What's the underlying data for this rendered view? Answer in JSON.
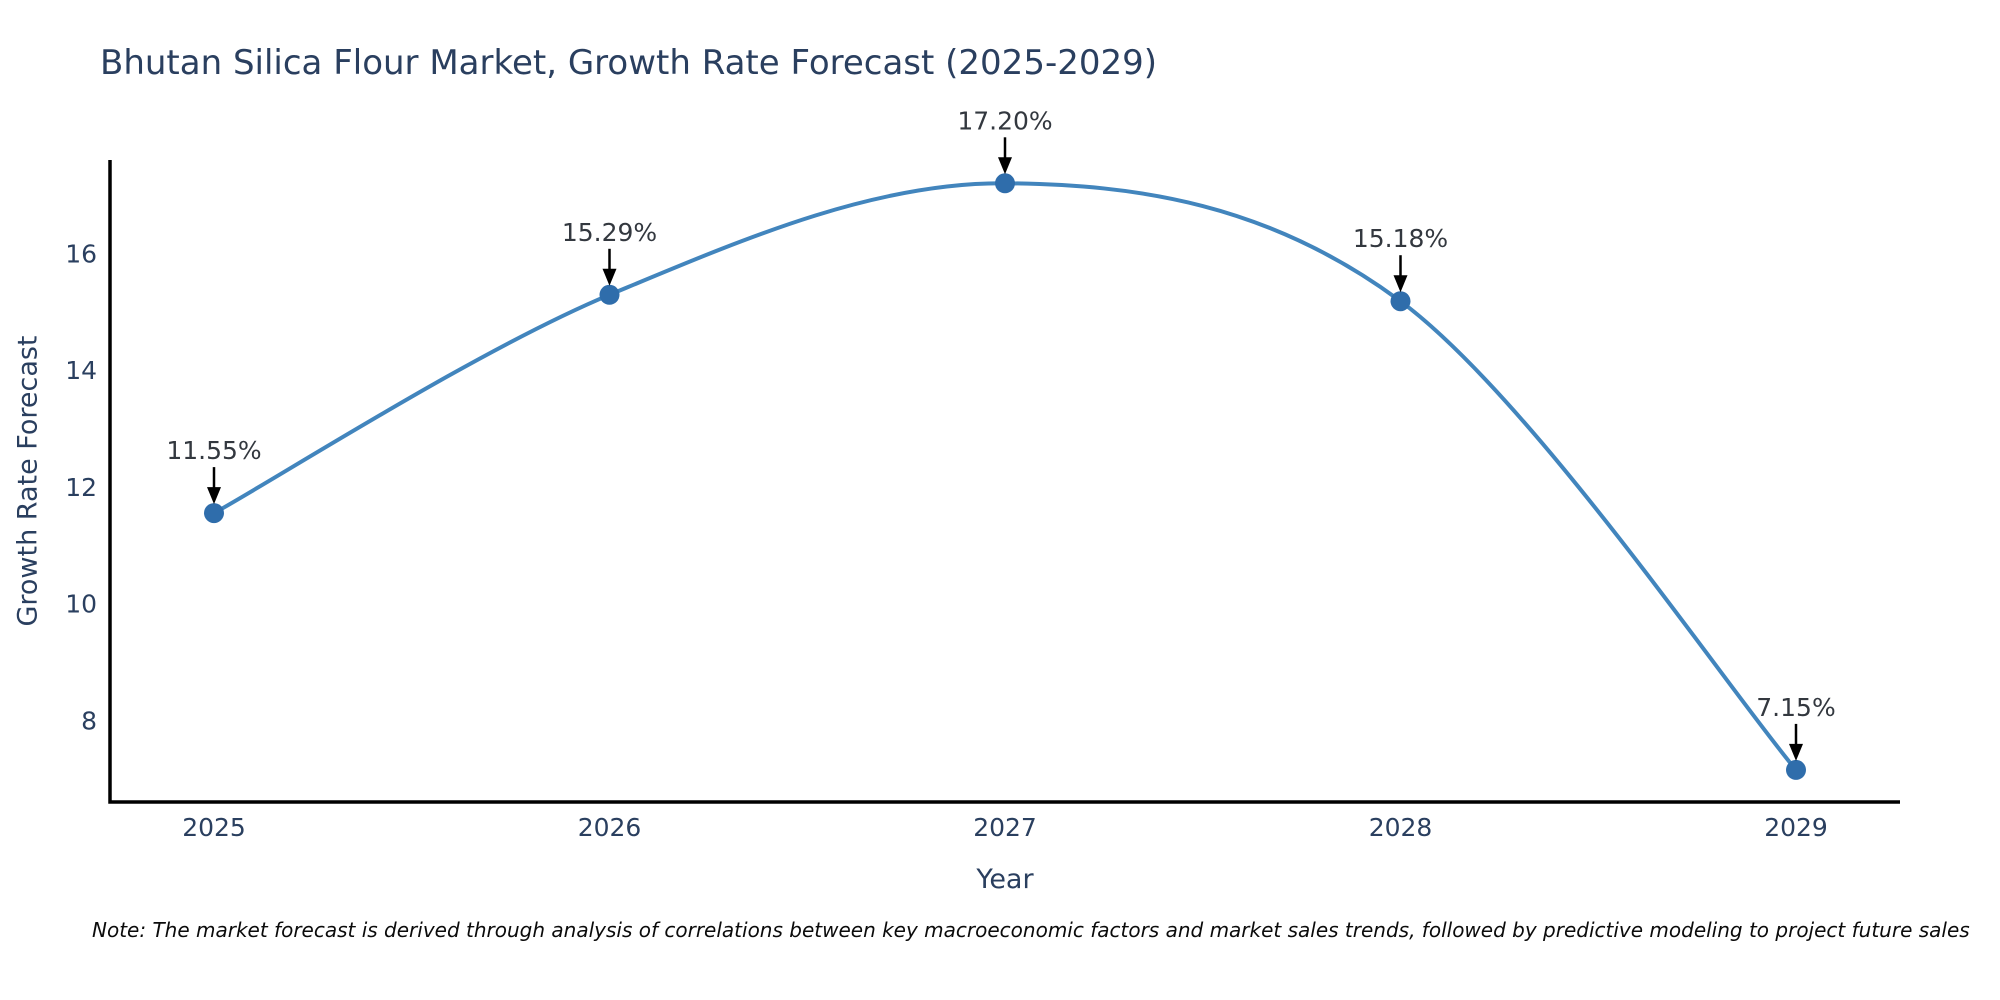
{
  "figure": {
    "note": "Note: The market forecast is derived through analysis of correlations between key macroeconomic factors and market sales trends, followed by predictive modeling to project future sales"
  },
  "chart_data": {
    "type": "line",
    "title": "Bhutan Silica Flour Market, Growth Rate Forecast (2025-2029)",
    "xlabel": "Year",
    "ylabel": "Growth Rate Forecast",
    "x": [
      2025,
      2026,
      2027,
      2028,
      2029
    ],
    "series": [
      {
        "name": "Growth Rate Forecast",
        "values": [
          11.55,
          15.29,
          17.2,
          15.18,
          7.15
        ]
      }
    ],
    "point_labels": [
      "11.55%",
      "15.29%",
      "17.20%",
      "15.18%",
      "7.15%"
    ],
    "yticks": [
      8,
      10,
      12,
      14,
      16
    ],
    "ylim": [
      6.6,
      17.6
    ],
    "grid": false,
    "legend": "none",
    "line_shape": "spline",
    "annotations": "value labels with downward arrows at each data point",
    "colors": {
      "line": "#4285bd",
      "marker": "#2f6dab",
      "axis": "#000000",
      "text": "#2a3f5f",
      "annotation": "#33383f",
      "arrow": "#000000",
      "background": "#ffffff"
    }
  }
}
